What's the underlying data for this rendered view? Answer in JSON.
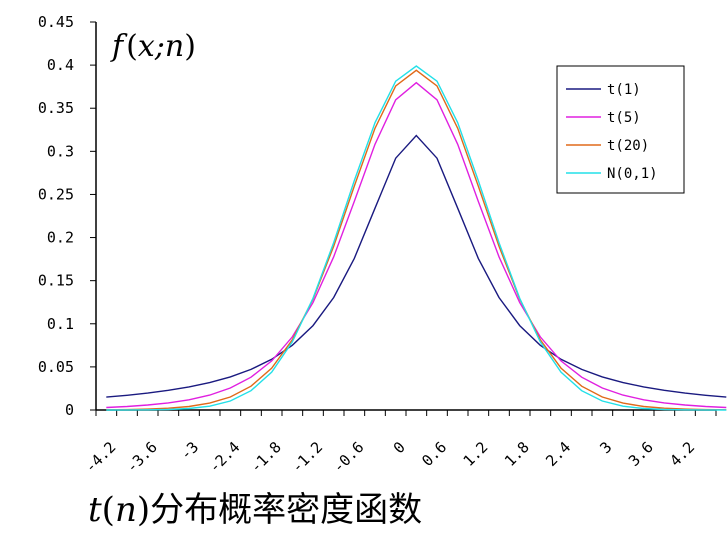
{
  "chart_data": {
    "type": "line",
    "ylabel": "f(x;n)",
    "title": "t(n)分布概率密度函数",
    "ylim": [
      0,
      0.45
    ],
    "y_ticks": [
      "0",
      "0.05",
      "0.1",
      "0.15",
      "0.2",
      "0.25",
      "0.3",
      "0.35",
      "0.4",
      "0.45"
    ],
    "xlim": [
      -4.5,
      4.5
    ],
    "x_ticks": [
      "-4.2",
      "-3.6",
      "-3",
      "-2.4",
      "-1.8",
      "-1.2",
      "-0.6",
      "0",
      "0.6",
      "1.2",
      "1.8",
      "2.4",
      "3",
      "3.6",
      "4.2"
    ],
    "grid": false,
    "legend_position": "top-right",
    "series": [
      {
        "name": "t(1)",
        "df": 1,
        "color": "#1a1a80"
      },
      {
        "name": "t(5)",
        "df": 5,
        "color": "#e020e0"
      },
      {
        "name": "t(20)",
        "df": 20,
        "color": "#e06a1a"
      },
      {
        "name": "N(0,1)",
        "df": null,
        "color": "#22e0e8"
      }
    ],
    "x": [
      -4.5,
      -4.2,
      -3.9,
      -3.6,
      -3.3,
      -3.0,
      -2.7,
      -2.4,
      -2.1,
      -1.8,
      -1.5,
      -1.2,
      -0.9,
      -0.6,
      -0.3,
      0,
      0.3,
      0.6,
      0.9,
      1.2,
      1.5,
      1.8,
      2.1,
      2.4,
      2.7,
      3.0,
      3.3,
      3.6,
      3.9,
      4.2,
      4.5
    ]
  },
  "labels": {
    "ylabel_f": "f",
    "ylabel_paren_open": "(",
    "ylabel_args": "x;n",
    "ylabel_paren_close": ")",
    "caption_t": "t",
    "caption_paren_open": "(",
    "caption_n": "n",
    "caption_paren_close": ")",
    "caption_rest": "分布概率密度函数"
  }
}
